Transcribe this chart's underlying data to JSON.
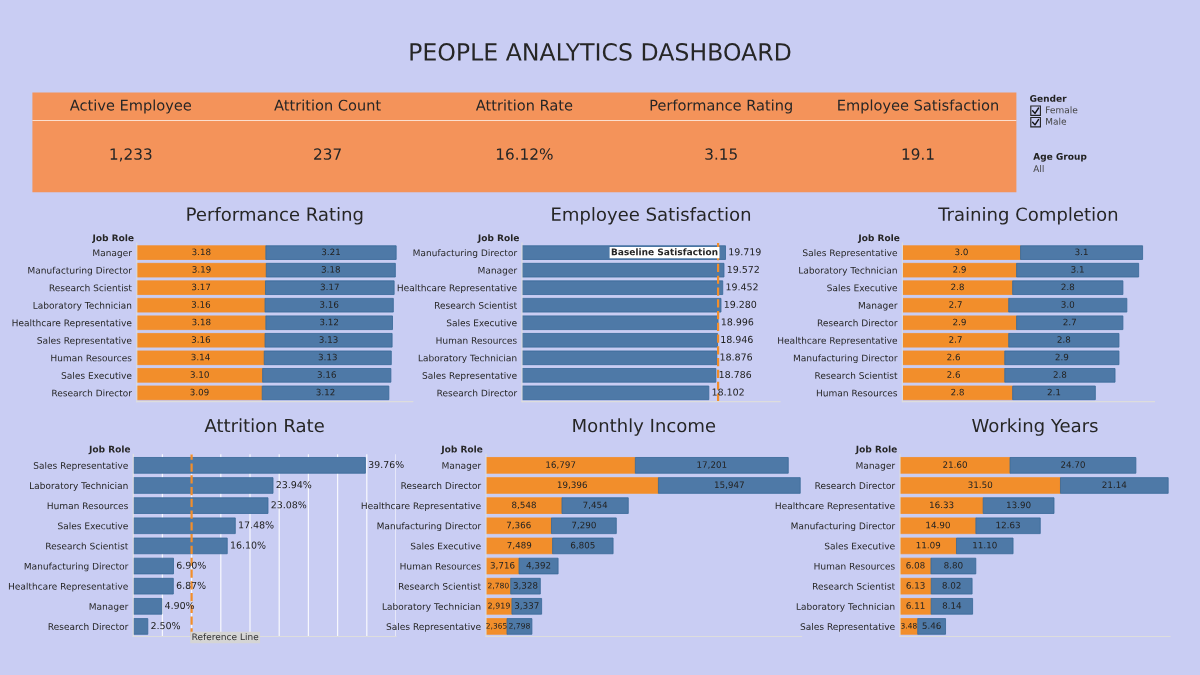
{
  "chart_data": [
    {
      "type": "other",
      "title": "PEOPLE ANALYTICS DASHBOARD",
      "categories": [
        "Active Employee",
        "Attrition Count",
        "Attrition Rate",
        "Performance Rating",
        "Employee Satisfaction"
      ],
      "value_labels": [
        "1,233",
        "237",
        "16.12%",
        "3.15",
        "19.1"
      ],
      "color": "#f4935a",
      "annotations": [
        "Gender",
        "Female",
        "Male",
        "Age Group",
        "All"
      ]
    },
    {
      "type": "bar",
      "orientation": "horizontal",
      "stacked": true,
      "title": "Performance Rating",
      "ylabel": "Job Role",
      "xlim": [
        0,
        6.8
      ],
      "tick_labels": "y",
      "categories": [
        "Manager",
        "Manufacturing Director",
        "Research Scientist",
        "Laboratory Technician",
        "Healthcare Representative",
        "Sales Representative",
        "Human Resources",
        "Sales Executive",
        "Research Director"
      ],
      "series": [
        {
          "color": "#f28e2b",
          "values": [
            3.18,
            3.19,
            3.17,
            3.16,
            3.18,
            3.16,
            3.14,
            3.1,
            3.09
          ],
          "value_labels": [
            "3.18",
            "3.19",
            "3.17",
            "3.16",
            "3.18",
            "3.16",
            "3.14",
            "3.10",
            "3.09"
          ]
        },
        {
          "color": "#4e79a7",
          "values": [
            3.21,
            3.18,
            3.17,
            3.16,
            3.12,
            3.13,
            3.13,
            3.16,
            3.12
          ],
          "value_labels": [
            "3.21",
            "3.18",
            "3.17",
            "3.16",
            "3.12",
            "3.13",
            "3.13",
            "3.16",
            "3.12"
          ]
        }
      ]
    },
    {
      "type": "bar",
      "orientation": "horizontal",
      "title": "Employee Satisfaction",
      "ylabel": "Job Role",
      "xlim": [
        0,
        25
      ],
      "tick_labels": "y",
      "categories": [
        "Manufacturing Director",
        "Manager",
        "Healthcare Representative",
        "Research Scientist",
        "Sales Executive",
        "Human Resources",
        "Laboratory Technician",
        "Sales Representative",
        "Research Director"
      ],
      "series": [
        {
          "color": "#4e79a7",
          "values": [
            19.719,
            19.572,
            19.452,
            19.28,
            18.996,
            18.946,
            18.876,
            18.786,
            18.102
          ],
          "value_labels": [
            "19.719",
            "19.572",
            "19.452",
            "19.280",
            "18.996",
            "18.946",
            "18.876",
            "18.786",
            "18.102"
          ]
        }
      ],
      "ref_lines": [
        {
          "axis": "x",
          "value": 19.0,
          "label": "Baseline Satisfaction",
          "color": "#f28e2b",
          "line_style": "dashed"
        }
      ]
    },
    {
      "type": "bar",
      "orientation": "horizontal",
      "stacked": true,
      "title": "Training Completion",
      "ylabel": "Job Role",
      "xlim": [
        0,
        6.4
      ],
      "tick_labels": "y",
      "categories": [
        "Sales Representative",
        "Laboratory Technician",
        "Sales Executive",
        "Manager",
        "Research Director",
        "Healthcare Representative",
        "Manufacturing Director",
        "Research Scientist",
        "Human Resources"
      ],
      "series": [
        {
          "color": "#f28e2b",
          "values": [
            3.0,
            2.9,
            2.8,
            2.7,
            2.9,
            2.7,
            2.6,
            2.6,
            2.8
          ],
          "value_labels": [
            "3.0",
            "2.9",
            "2.8",
            "2.7",
            "2.9",
            "2.7",
            "2.6",
            "2.6",
            "2.8"
          ]
        },
        {
          "color": "#4e79a7",
          "values": [
            3.1,
            3.1,
            2.8,
            3.0,
            2.7,
            2.8,
            2.9,
            2.8,
            2.1
          ],
          "value_labels": [
            "3.1",
            "3.1",
            "2.8",
            "3.0",
            "2.7",
            "2.8",
            "2.9",
            "2.8",
            "2.1"
          ]
        }
      ]
    },
    {
      "type": "bar",
      "orientation": "horizontal",
      "title": "Attrition Rate",
      "ylabel": "Job Role",
      "xlim": [
        0,
        45
      ],
      "xticks": [
        {
          "value": 0,
          "label": null
        },
        {
          "value": 5,
          "label": null
        },
        {
          "value": 10,
          "label": null
        },
        {
          "value": 15,
          "label": null
        },
        {
          "value": 20,
          "label": null
        },
        {
          "value": 25,
          "label": null
        },
        {
          "value": 30,
          "label": null
        },
        {
          "value": 35,
          "label": null
        },
        {
          "value": 40,
          "label": null
        },
        {
          "value": 45,
          "label": null
        }
      ],
      "grid": "x",
      "tick_labels": "y",
      "categories": [
        "Sales Representative",
        "Laboratory Technician",
        "Human Resources",
        "Sales Executive",
        "Research Scientist",
        "Manufacturing Director",
        "Healthcare Representative",
        "Manager",
        "Research Director"
      ],
      "series": [
        {
          "color": "#4e79a7",
          "values": [
            39.76,
            23.94,
            23.08,
            17.48,
            16.1,
            6.9,
            6.87,
            4.9,
            2.5
          ],
          "value_labels": [
            "39.76%",
            "23.94%",
            "23.08%",
            "17.48%",
            "16.10%",
            "6.90%",
            "6.87%",
            "4.90%",
            "2.50%"
          ]
        }
      ],
      "ref_lines": [
        {
          "axis": "x",
          "value": 10,
          "label": "Reference Line",
          "color": "#f28e2b",
          "line_style": "dashed"
        }
      ]
    },
    {
      "type": "bar",
      "orientation": "horizontal",
      "stacked": true,
      "title": "Monthly Income",
      "ylabel": "Job Role",
      "xlim": [
        0,
        35500
      ],
      "tick_labels": "y",
      "categories": [
        "Manager",
        "Research Director",
        "Healthcare Representative",
        "Manufacturing Director",
        "Sales Executive",
        "Human Resources",
        "Research Scientist",
        "Laboratory Technician",
        "Sales Representative"
      ],
      "series": [
        {
          "color": "#f28e2b",
          "values": [
            16797,
            19396,
            8548,
            7366,
            7489,
            3716,
            2780,
            2919,
            2365
          ],
          "value_labels": [
            "16,797",
            "19,396",
            "8,548",
            "7,366",
            "7,489",
            "3,716",
            "2,780",
            "2,919",
            "2,365"
          ]
        },
        {
          "color": "#4e79a7",
          "values": [
            17201,
            15947,
            7454,
            7290,
            6805,
            4392,
            3328,
            3337,
            2798
          ],
          "value_labels": [
            "17,201",
            "15,947",
            "7,454",
            "7,290",
            "6,805",
            "4,392",
            "3,328",
            "3,337",
            "2,798"
          ]
        }
      ]
    },
    {
      "type": "bar",
      "orientation": "horizontal",
      "stacked": true,
      "title": "Working Years",
      "ylabel": "Job Role",
      "xlim": [
        0,
        53
      ],
      "tick_labels": "y",
      "categories": [
        "Manager",
        "Research Director",
        "Healthcare Representative",
        "Manufacturing Director",
        "Sales Executive",
        "Human Resources",
        "Research Scientist",
        "Laboratory Technician",
        "Sales Representative"
      ],
      "series": [
        {
          "color": "#f28e2b",
          "values": [
            21.6,
            31.5,
            16.33,
            14.9,
            11.09,
            6.08,
            6.13,
            6.11,
            3.48
          ],
          "value_labels": [
            "21.60",
            "31.50",
            "16.33",
            "14.90",
            "11.09",
            "6.08",
            "6.13",
            "6.11",
            "3.48"
          ]
        },
        {
          "color": "#4e79a7",
          "values": [
            24.7,
            21.14,
            13.9,
            12.63,
            11.1,
            8.8,
            8.02,
            8.14,
            5.46
          ],
          "value_labels": [
            "24.70",
            "21.14",
            "13.90",
            "12.63",
            "11.10",
            "8.80",
            "8.02",
            "8.14",
            "5.46"
          ]
        }
      ]
    }
  ]
}
